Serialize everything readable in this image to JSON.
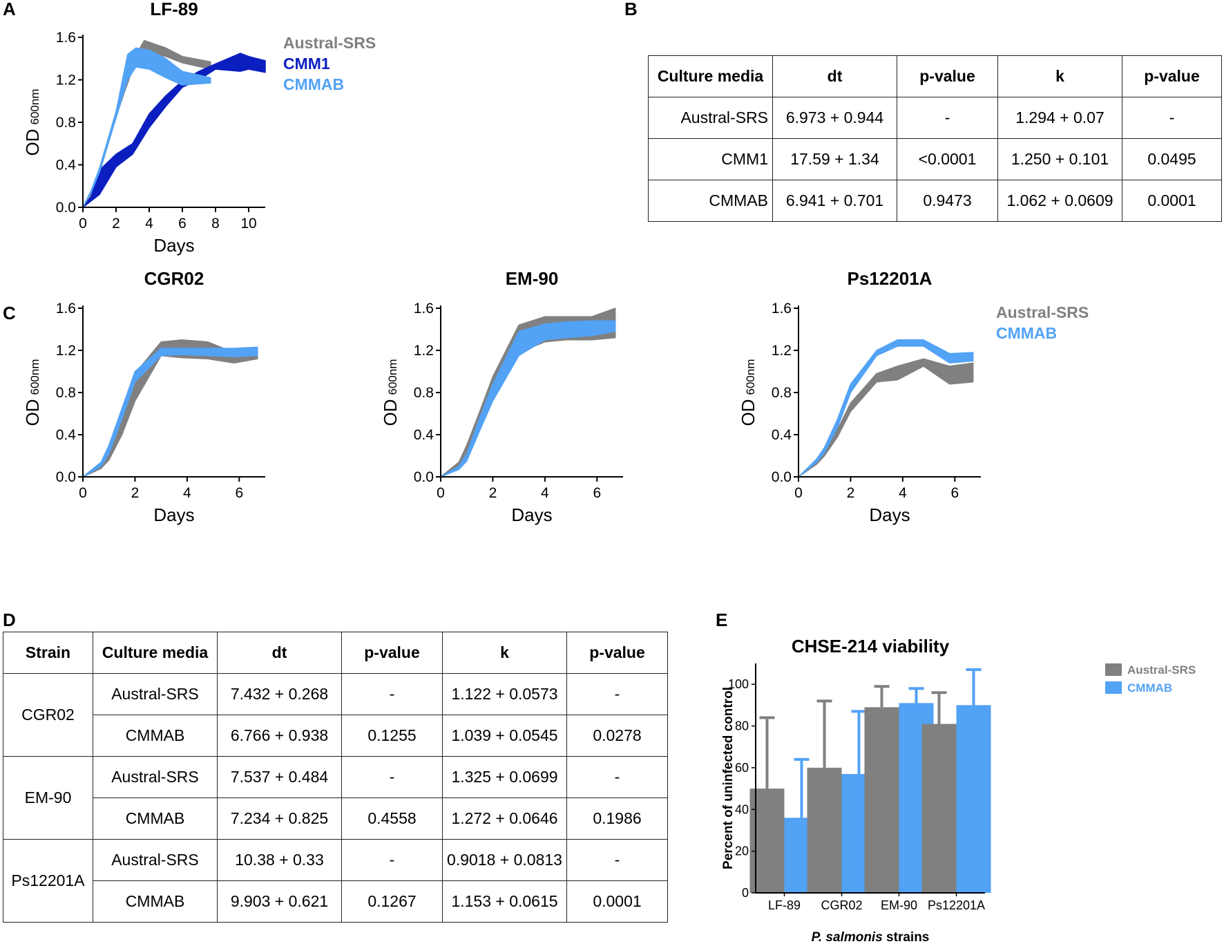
{
  "panels": {
    "a": "A",
    "b": "B",
    "c": "C",
    "d": "D",
    "e": "E"
  },
  "colors": {
    "austral": "#808080",
    "cmm1": "#0b1ec0",
    "cmmab": "#52a2f5"
  },
  "chart_data": [
    {
      "type": "area",
      "title": "LF-89",
      "xlabel": "Days",
      "ylabel": "OD",
      "ylabel_sub": "600nm",
      "xlim": [
        0,
        11
      ],
      "ylim": [
        0,
        1.6
      ],
      "xticks": [
        "0",
        "2",
        "4",
        "6",
        "8",
        "10"
      ],
      "yticks": [
        "0.0",
        "0.4",
        "0.8",
        "1.2",
        "1.6"
      ],
      "legend": [
        "Austral-SRS",
        "CMM1",
        "CMMAB"
      ],
      "series": [
        {
          "name": "Austral-SRS",
          "color": "#808080",
          "x": [
            0,
            0.5,
            1,
            2,
            2.5,
            3,
            3.7,
            5,
            6,
            7.7
          ],
          "lower": [
            0,
            0.12,
            0.32,
            0.85,
            1.08,
            1.3,
            1.45,
            1.42,
            1.36,
            1.3
          ],
          "upper": [
            0,
            0.14,
            0.36,
            0.9,
            1.15,
            1.38,
            1.57,
            1.5,
            1.42,
            1.37
          ]
        },
        {
          "name": "CMM1",
          "color": "#0b1ec0",
          "x": [
            0,
            0.5,
            1,
            2,
            3,
            4,
            5,
            6,
            7,
            8,
            9.5,
            10,
            11
          ],
          "lower": [
            0,
            0.06,
            0.12,
            0.38,
            0.5,
            0.75,
            0.95,
            1.13,
            1.2,
            1.3,
            1.28,
            1.3,
            1.27
          ],
          "upper": [
            0,
            0.1,
            0.35,
            0.5,
            0.6,
            0.88,
            1.05,
            1.19,
            1.28,
            1.35,
            1.45,
            1.42,
            1.38
          ]
        },
        {
          "name": "CMMAB",
          "color": "#52a2f5",
          "x": [
            0,
            0.5,
            1,
            2,
            2.7,
            3.2,
            4,
            5,
            6,
            7.7
          ],
          "lower": [
            0,
            0.14,
            0.33,
            0.84,
            1.2,
            1.32,
            1.3,
            1.22,
            1.15,
            1.17
          ],
          "upper": [
            0,
            0.16,
            0.37,
            0.9,
            1.44,
            1.5,
            1.48,
            1.4,
            1.28,
            1.22
          ]
        }
      ]
    },
    {
      "type": "area",
      "title": "CGR02",
      "xlabel": "Days",
      "ylabel": "OD",
      "ylabel_sub": "600nm",
      "xlim": [
        0,
        7
      ],
      "ylim": [
        0,
        1.6
      ],
      "xticks": [
        "0",
        "2",
        "4",
        "6"
      ],
      "yticks": [
        "0.0",
        "0.4",
        "0.8",
        "1.2",
        "1.6"
      ],
      "legend": [],
      "series": [
        {
          "name": "Austral-SRS",
          "color": "#808080",
          "x": [
            0,
            0.7,
            1,
            1.5,
            2,
            3,
            3.8,
            4.8,
            5.8,
            6.7
          ],
          "lower": [
            0,
            0.08,
            0.16,
            0.4,
            0.72,
            1.15,
            1.13,
            1.12,
            1.08,
            1.12
          ],
          "upper": [
            0,
            0.12,
            0.25,
            0.55,
            0.98,
            1.28,
            1.3,
            1.28,
            1.18,
            1.2
          ]
        },
        {
          "name": "CMMAB",
          "color": "#52a2f5",
          "x": [
            0,
            0.7,
            1,
            1.5,
            2,
            3,
            3.8,
            4.8,
            5.8,
            6.7
          ],
          "lower": [
            0,
            0.1,
            0.22,
            0.55,
            0.9,
            1.15,
            1.16,
            1.15,
            1.14,
            1.15
          ],
          "upper": [
            0,
            0.14,
            0.3,
            0.65,
            1.0,
            1.22,
            1.22,
            1.22,
            1.22,
            1.23
          ]
        }
      ]
    },
    {
      "type": "area",
      "title": "EM-90",
      "xlabel": "Days",
      "ylabel": "OD",
      "ylabel_sub": "600nm",
      "xlim": [
        0,
        7
      ],
      "ylim": [
        0,
        1.6
      ],
      "xticks": [
        "0",
        "2",
        "4",
        "6"
      ],
      "yticks": [
        "0.0",
        "0.4",
        "0.8",
        "1.2",
        "1.6"
      ],
      "legend": [],
      "series": [
        {
          "name": "Austral-SRS",
          "color": "#808080",
          "x": [
            0,
            0.7,
            1,
            1.5,
            2,
            3,
            4,
            4.8,
            5.8,
            6.7
          ],
          "lower": [
            0,
            0.08,
            0.2,
            0.5,
            0.8,
            1.18,
            1.28,
            1.3,
            1.3,
            1.32
          ],
          "upper": [
            0,
            0.14,
            0.3,
            0.62,
            0.95,
            1.44,
            1.52,
            1.52,
            1.52,
            1.6
          ]
        },
        {
          "name": "CMMAB",
          "color": "#52a2f5",
          "x": [
            0,
            0.7,
            1,
            1.5,
            2,
            3,
            4,
            4.8,
            5.8,
            6.7
          ],
          "lower": [
            0,
            0.07,
            0.15,
            0.44,
            0.72,
            1.15,
            1.3,
            1.32,
            1.34,
            1.38
          ],
          "upper": [
            0,
            0.1,
            0.22,
            0.56,
            0.88,
            1.38,
            1.45,
            1.47,
            1.48,
            1.48
          ]
        }
      ]
    },
    {
      "type": "area",
      "title": "Ps12201A",
      "xlabel": "Days",
      "ylabel": "OD",
      "ylabel_sub": "600nm",
      "xlim": [
        0,
        7
      ],
      "ylim": [
        0,
        1.6
      ],
      "xticks": [
        "0",
        "2",
        "4",
        "6"
      ],
      "yticks": [
        "0.0",
        "0.4",
        "0.8",
        "1.2",
        "1.6"
      ],
      "legend": [
        "Austral-SRS",
        "CMMAB"
      ],
      "series": [
        {
          "name": "Austral-SRS",
          "color": "#808080",
          "x": [
            0,
            0.7,
            1,
            1.5,
            2,
            3,
            3.8,
            4.8,
            5.8,
            6.7
          ],
          "lower": [
            0,
            0.12,
            0.2,
            0.38,
            0.62,
            0.9,
            0.92,
            1.05,
            0.88,
            0.9
          ],
          "upper": [
            0,
            0.15,
            0.25,
            0.45,
            0.7,
            0.98,
            1.05,
            1.12,
            1.05,
            1.08
          ]
        },
        {
          "name": "CMMAB",
          "color": "#52a2f5",
          "x": [
            0,
            0.7,
            1,
            1.5,
            2,
            3,
            3.8,
            4.8,
            5.8,
            6.7
          ],
          "lower": [
            0,
            0.14,
            0.23,
            0.47,
            0.8,
            1.15,
            1.24,
            1.24,
            1.08,
            1.1
          ],
          "upper": [
            0,
            0.17,
            0.28,
            0.55,
            0.88,
            1.2,
            1.3,
            1.3,
            1.17,
            1.18
          ]
        }
      ]
    },
    {
      "type": "bar",
      "title": "CHSE-214 viability",
      "xlabel_italic": "P. salmonis",
      "xlabel_rest": " strains",
      "ylabel": "Percent of uninfected control",
      "ylim": [
        0,
        110
      ],
      "yticks": [
        "0",
        "20",
        "40",
        "60",
        "80",
        "100"
      ],
      "categories": [
        "LF-89",
        "CGR02",
        "EM-90",
        "Ps12201A"
      ],
      "series": [
        {
          "name": "Austral-SRS",
          "color": "#808080",
          "values": [
            50,
            60,
            89,
            81
          ],
          "errors": [
            34,
            32,
            10,
            15
          ]
        },
        {
          "name": "CMMAB",
          "color": "#52a2f5",
          "values": [
            36,
            57,
            91,
            90
          ],
          "errors": [
            28,
            30,
            7,
            17
          ]
        }
      ]
    }
  ],
  "table_b": {
    "headers": [
      "Culture media",
      "dt",
      "p-value",
      "k",
      "p-value"
    ],
    "rows": [
      {
        "media": "Austral-SRS",
        "dt": "6.973 + 0.944",
        "p1": "-",
        "k": "1.294 + 0.07",
        "p2": "-"
      },
      {
        "media": "CMM1",
        "dt": "17.59 + 1.34",
        "p1": "<0.0001",
        "k": "1.250 + 0.101",
        "p2": "0.0495"
      },
      {
        "media": "CMMAB",
        "dt": "6.941 + 0.701",
        "p1": "0.9473",
        "k": "1.062 + 0.0609",
        "p2": "0.0001"
      }
    ]
  },
  "table_d": {
    "headers": [
      "Strain",
      "Culture media",
      "dt",
      "p-value",
      "k",
      "p-value"
    ],
    "groups": [
      {
        "strain": "CGR02",
        "rows": [
          {
            "media": "Austral-SRS",
            "dt": "7.432 + 0.268",
            "p1": "-",
            "k": "1.122 + 0.0573",
            "p2": "-"
          },
          {
            "media": "CMMAB",
            "dt": "6.766 + 0.938",
            "p1": "0.1255",
            "k": "1.039 + 0.0545",
            "p2": "0.0278"
          }
        ]
      },
      {
        "strain": "EM-90",
        "rows": [
          {
            "media": "Austral-SRS",
            "dt": "7.537 + 0.484",
            "p1": "-",
            "k": "1.325 + 0.0699",
            "p2": "-"
          },
          {
            "media": "CMMAB",
            "dt": "7.234 + 0.825",
            "p1": "0.4558",
            "k": "1.272 + 0.0646",
            "p2": "0.1986"
          }
        ]
      },
      {
        "strain": "Ps12201A",
        "rows": [
          {
            "media": "Austral-SRS",
            "dt": "10.38 + 0.33",
            "p1": "-",
            "k": "0.9018 + 0.0813",
            "p2": "-"
          },
          {
            "media": "CMMAB",
            "dt": "9.903 + 0.621",
            "p1": "0.1267",
            "k": "1.153 + 0.0615",
            "p2": "0.0001"
          }
        ]
      }
    ]
  }
}
